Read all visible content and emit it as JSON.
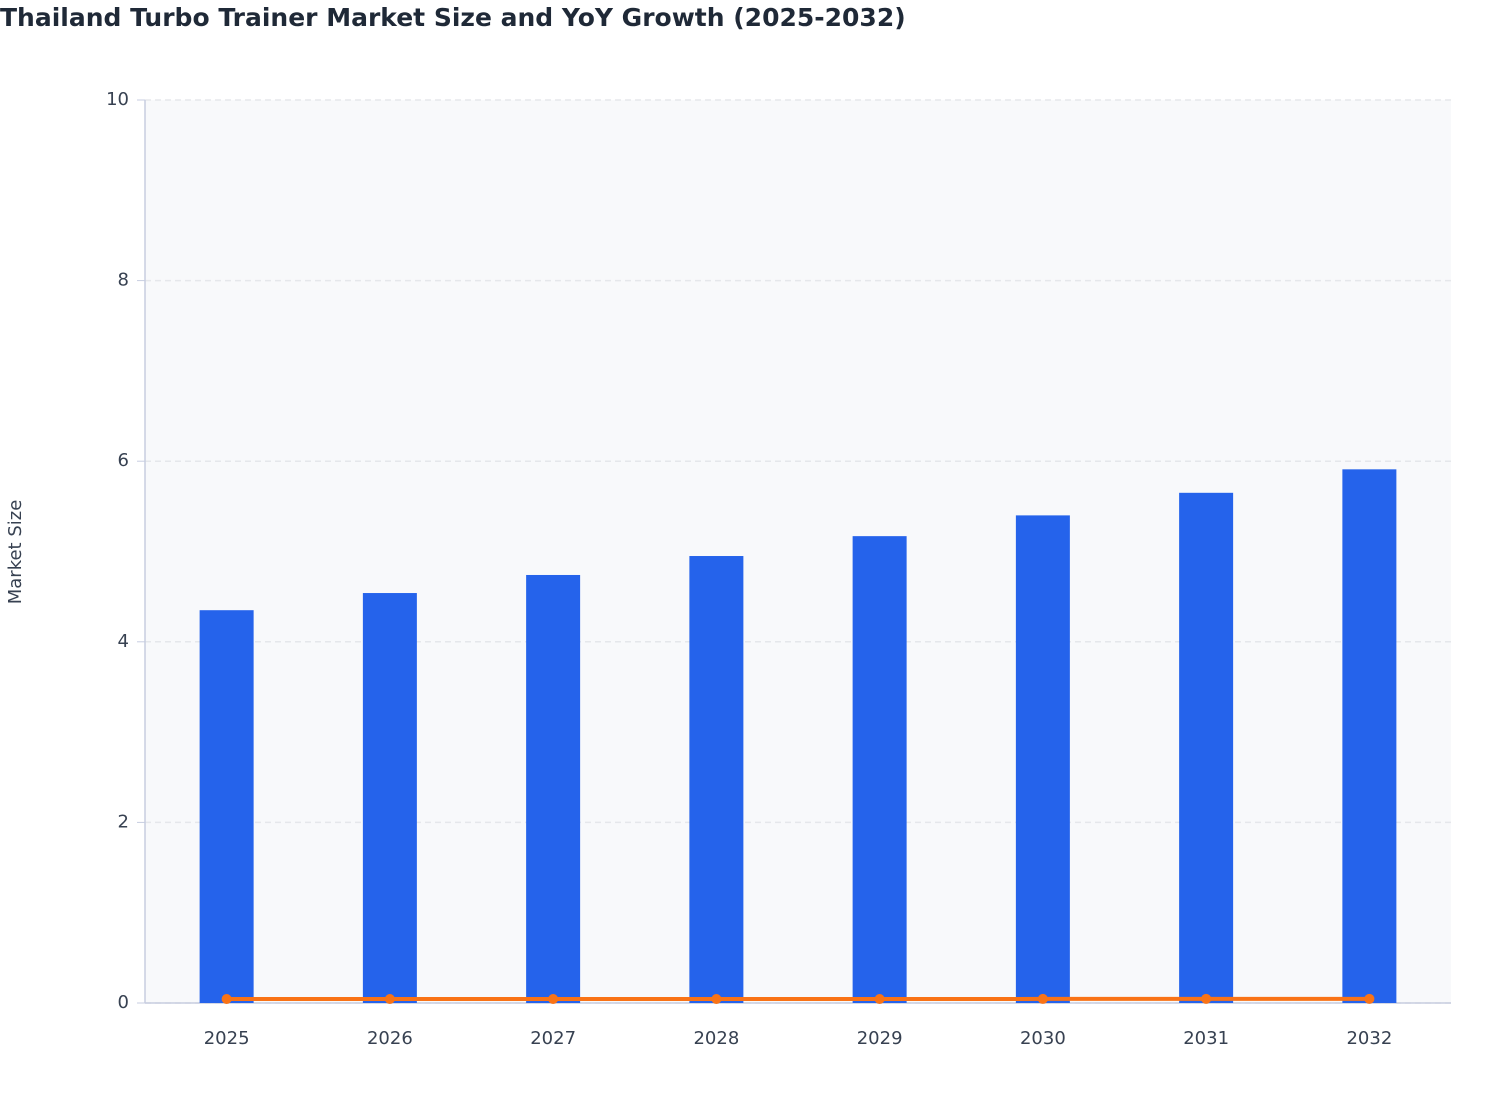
{
  "chart_data": {
    "type": "bar",
    "title": "Thailand Turbo Trainer Market Size and YoY Growth (2025-2032)",
    "y_label": "Market Size",
    "categories": [
      "2025",
      "2026",
      "2027",
      "2028",
      "2029",
      "2030",
      "2031",
      "2032"
    ],
    "series": [
      {
        "type": "bar",
        "color": "#2563eb",
        "values": [
          4.35,
          4.54,
          4.74,
          4.95,
          5.17,
          5.4,
          5.65,
          5.91
        ]
      },
      {
        "type": "line",
        "color": "#f97316",
        "values": [
          0.044,
          0.044,
          0.044,
          0.044,
          0.044,
          0.045,
          0.046,
          0.046
        ]
      }
    ],
    "ylim": [
      0,
      10
    ],
    "yticks": [
      0,
      2,
      4,
      6,
      8,
      10
    ],
    "grid": true
  }
}
